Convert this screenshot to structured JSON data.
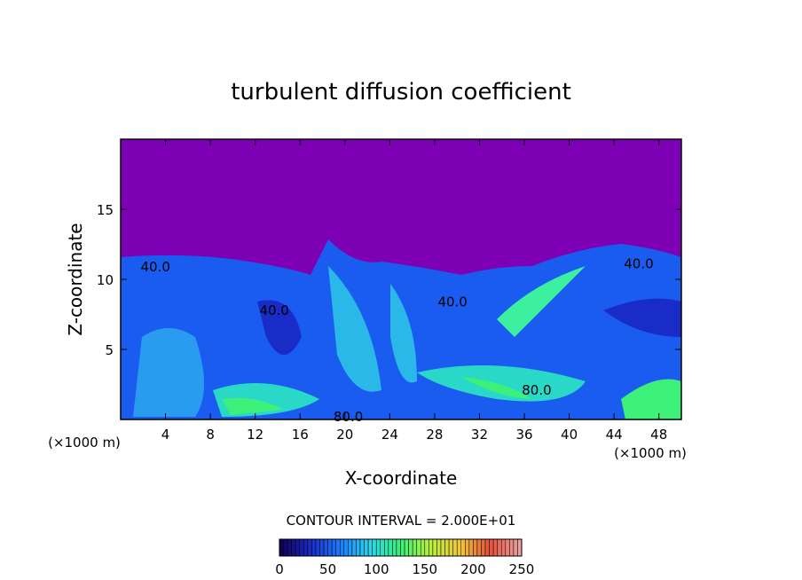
{
  "chart_data": {
    "type": "contour",
    "title": "turbulent diffusion coefficient",
    "xlabel": "X-coordinate",
    "ylabel": "Z-coordinate",
    "x_unit": "(×1000 m)",
    "xlim": [
      0,
      50
    ],
    "ylim": [
      0,
      20
    ],
    "xticks": [
      4,
      8,
      12,
      16,
      20,
      24,
      28,
      32,
      36,
      40,
      44,
      48
    ],
    "yticks": [
      5,
      10,
      15
    ],
    "contour_interval_text": "CONTOUR INTERVAL = 2.000E+01",
    "contour_labels": [
      {
        "value": 40,
        "label": "40.0",
        "x": 3.1,
        "y": 10.9
      },
      {
        "value": 40,
        "label": "40.0",
        "x": 13.7,
        "y": 7.8
      },
      {
        "value": 40,
        "label": "40.0",
        "x": 29.6,
        "y": 8.4
      },
      {
        "value": 40,
        "label": "40.0",
        "x": 46.2,
        "y": 11.1
      },
      {
        "value": 80,
        "label": "80.0",
        "x": 37.1,
        "y": 2.1
      },
      {
        "value": 80,
        "label": "80.0",
        "x": 20.3,
        "y": 0.2
      }
    ],
    "clim": [
      0,
      250
    ],
    "cticks": [
      0,
      50,
      100,
      150,
      200,
      250
    ],
    "colorscale": [
      "#12005a",
      "#1a2cc8",
      "#1a7dff",
      "#2ad8e8",
      "#3cf07a",
      "#b8f03c",
      "#f0c83c",
      "#e8503c",
      "#e8a0a0"
    ]
  }
}
